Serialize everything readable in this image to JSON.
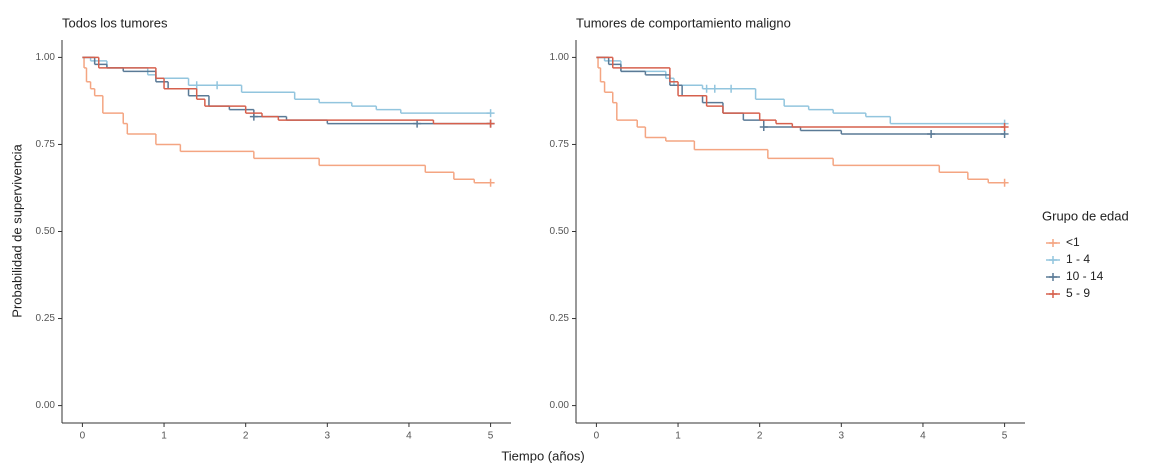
{
  "ylabel": "Probabilidad de supervivencia",
  "xlabel": "Tiempo (años)",
  "legend_title": "Grupo de edad",
  "chart_data": [
    {
      "type": "step",
      "title": "Todos los tumores",
      "xlim": [
        -0.25,
        5.25
      ],
      "ylim": [
        -0.05,
        1.05
      ],
      "xticks": [
        0,
        1,
        2,
        3,
        4,
        5
      ],
      "yticks": [
        {
          "value": 0,
          "label": "0.00"
        },
        {
          "value": 0.25,
          "label": "0.25"
        },
        {
          "value": 0.5,
          "label": "0.50"
        },
        {
          "value": 0.75,
          "label": "0.75"
        },
        {
          "value": 1,
          "label": "1.00"
        }
      ],
      "series": [
        {
          "name": "<1",
          "color": "#f4a582",
          "x": [
            0,
            0.02,
            0.05,
            0.1,
            0.15,
            0.25,
            0.5,
            0.55,
            0.9,
            1.2,
            2.1,
            2.9,
            4.2,
            4.55,
            4.8,
            5
          ],
          "values": [
            1,
            0.97,
            0.93,
            0.91,
            0.89,
            0.84,
            0.81,
            0.78,
            0.75,
            0.73,
            0.71,
            0.69,
            0.67,
            0.65,
            0.64,
            0.64
          ],
          "censored": {
            "x": [
              5
            ],
            "values": [
              0.64
            ]
          }
        },
        {
          "name": "1 - 4",
          "color": "#92c5de",
          "x": [
            0,
            0.1,
            0.3,
            0.8,
            0.9,
            1.3,
            1.95,
            2.6,
            2.9,
            3.3,
            3.6,
            3.9,
            5
          ],
          "values": [
            1,
            0.99,
            0.97,
            0.95,
            0.94,
            0.92,
            0.9,
            0.88,
            0.87,
            0.86,
            0.85,
            0.84,
            0.84
          ],
          "censored": {
            "x": [
              1.4,
              1.65,
              5
            ],
            "values": [
              0.92,
              0.92,
              0.84
            ]
          }
        },
        {
          "name": "10 - 14",
          "color": "#5a7a96",
          "x": [
            0,
            0.15,
            0.3,
            0.5,
            0.9,
            1.05,
            1.3,
            1.55,
            1.8,
            2.1,
            2.5,
            3.0,
            5
          ],
          "values": [
            1,
            0.98,
            0.97,
            0.96,
            0.93,
            0.91,
            0.89,
            0.86,
            0.85,
            0.83,
            0.82,
            0.81,
            0.81
          ],
          "censored": {
            "x": [
              2.1,
              4.1,
              5
            ],
            "values": [
              0.83,
              0.81,
              0.81
            ]
          }
        },
        {
          "name": "5 - 9",
          "color": "#d6604d",
          "x": [
            0,
            0.2,
            0.9,
            1.0,
            1.4,
            1.5,
            2.0,
            2.2,
            2.4,
            4.3,
            5
          ],
          "values": [
            1,
            0.97,
            0.94,
            0.91,
            0.88,
            0.86,
            0.84,
            0.83,
            0.82,
            0.81,
            0.81
          ],
          "censored": {
            "x": [
              5
            ],
            "values": [
              0.81
            ]
          }
        }
      ]
    },
    {
      "type": "step",
      "title": "Tumores de comportamiento maligno",
      "xlim": [
        -0.25,
        5.25
      ],
      "ylim": [
        -0.05,
        1.05
      ],
      "xticks": [
        0,
        1,
        2,
        3,
        4,
        5
      ],
      "yticks": [
        {
          "value": 0,
          "label": "0.00"
        },
        {
          "value": 0.25,
          "label": "0.25"
        },
        {
          "value": 0.5,
          "label": "0.50"
        },
        {
          "value": 0.75,
          "label": "0.75"
        },
        {
          "value": 1,
          "label": "1.00"
        }
      ],
      "series": [
        {
          "name": "<1",
          "color": "#f4a582",
          "x": [
            0,
            0.02,
            0.05,
            0.1,
            0.2,
            0.25,
            0.5,
            0.6,
            0.85,
            1.2,
            2.1,
            2.9,
            4.2,
            4.55,
            4.8,
            5
          ],
          "values": [
            1,
            0.97,
            0.93,
            0.9,
            0.87,
            0.82,
            0.8,
            0.77,
            0.76,
            0.735,
            0.71,
            0.69,
            0.67,
            0.65,
            0.64,
            0.64
          ],
          "censored": {
            "x": [
              5
            ],
            "values": [
              0.64
            ]
          }
        },
        {
          "name": "1 - 4",
          "color": "#92c5de",
          "x": [
            0,
            0.1,
            0.3,
            0.85,
            0.95,
            1.3,
            1.95,
            2.3,
            2.6,
            2.9,
            3.3,
            3.6,
            5
          ],
          "values": [
            1,
            0.99,
            0.96,
            0.94,
            0.92,
            0.91,
            0.88,
            0.86,
            0.85,
            0.84,
            0.83,
            0.81,
            0.81
          ],
          "censored": {
            "x": [
              1.35,
              1.45,
              1.65,
              5
            ],
            "values": [
              0.91,
              0.91,
              0.91,
              0.81
            ]
          }
        },
        {
          "name": "10 - 14",
          "color": "#5a7a96",
          "x": [
            0,
            0.15,
            0.3,
            0.6,
            0.9,
            1.05,
            1.3,
            1.55,
            1.8,
            2.05,
            2.5,
            3.0,
            5
          ],
          "values": [
            1,
            0.98,
            0.96,
            0.95,
            0.92,
            0.89,
            0.87,
            0.84,
            0.82,
            0.8,
            0.79,
            0.78,
            0.78
          ],
          "censored": {
            "x": [
              2.05,
              4.1,
              5
            ],
            "values": [
              0.8,
              0.78,
              0.78
            ]
          }
        },
        {
          "name": "5 - 9",
          "color": "#d6604d",
          "x": [
            0,
            0.2,
            0.9,
            1.0,
            1.35,
            1.55,
            2.0,
            2.2,
            2.4,
            5
          ],
          "values": [
            1,
            0.97,
            0.93,
            0.89,
            0.86,
            0.84,
            0.82,
            0.81,
            0.8,
            0.8
          ],
          "censored": {
            "x": [
              5
            ],
            "values": [
              0.8
            ]
          }
        }
      ]
    }
  ]
}
